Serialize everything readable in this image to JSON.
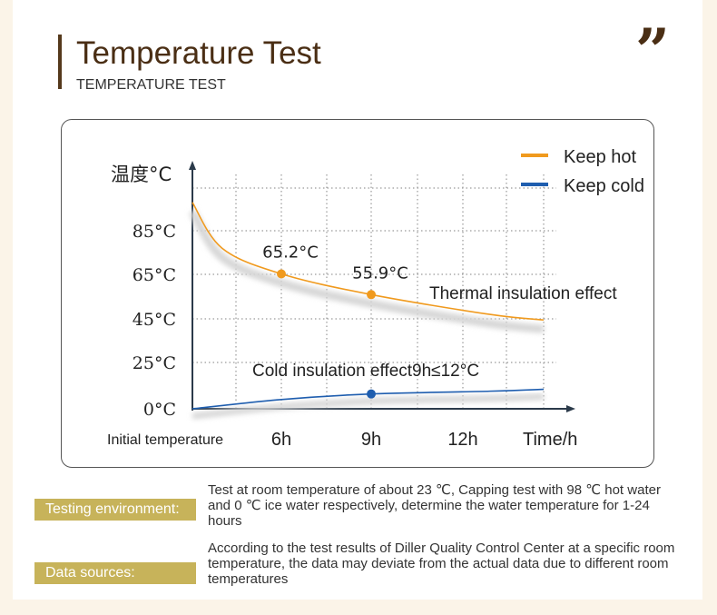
{
  "header": {
    "title": "Temperature Test",
    "subtitle": "TEMPERATURE TEST",
    "quote_glyph": "”"
  },
  "chart_data": {
    "type": "line",
    "ylabel": "温度°C",
    "xlabel": "Time/h",
    "x_start_label": "Initial temperature",
    "x_ticks": [
      "6h",
      "9h",
      "12h"
    ],
    "y_ticks": [
      "0°C",
      "25°C",
      "45°C",
      "65°C",
      "85°C"
    ],
    "x_values": [
      0,
      6,
      9,
      12
    ],
    "legend": {
      "position": "top-right"
    },
    "grid": true,
    "series": [
      {
        "name": "Keep hot",
        "color": "#f09a1e",
        "points": [
          [
            0,
            98
          ],
          [
            2,
            77
          ],
          [
            6,
            65.2
          ],
          [
            9,
            55.9
          ],
          [
            14,
            47
          ],
          [
            18,
            44.5
          ]
        ],
        "marked": [
          {
            "x": 6,
            "y": 65.2,
            "label": "65.2°C"
          },
          {
            "x": 9,
            "y": 55.9,
            "label": "55.9°C"
          }
        ]
      },
      {
        "name": "Keep cold",
        "color": "#1f5eaf",
        "points": [
          [
            0,
            0
          ],
          [
            6,
            5
          ],
          [
            9,
            8
          ],
          [
            14,
            9.5
          ],
          [
            18,
            10.5
          ]
        ],
        "marked": [
          {
            "x": 9,
            "y": 8,
            "label": ""
          }
        ]
      }
    ],
    "annotations": [
      {
        "text": "Thermal insulation effect"
      },
      {
        "text": "Cold insulation effect9h≤12°C"
      }
    ]
  },
  "info": [
    {
      "label": "Testing environment:",
      "text": "Test at room temperature of about 23 ℃, Capping test with 98 ℃ hot water and 0 ℃ ice water respectively, determine the water temperature for 1-24 hours"
    },
    {
      "label": "Data sources:",
      "text": "According to the test results of Diller Quality Control Center at a specific room temperature, the data may deviate from the actual data due to different room temperatures"
    }
  ]
}
